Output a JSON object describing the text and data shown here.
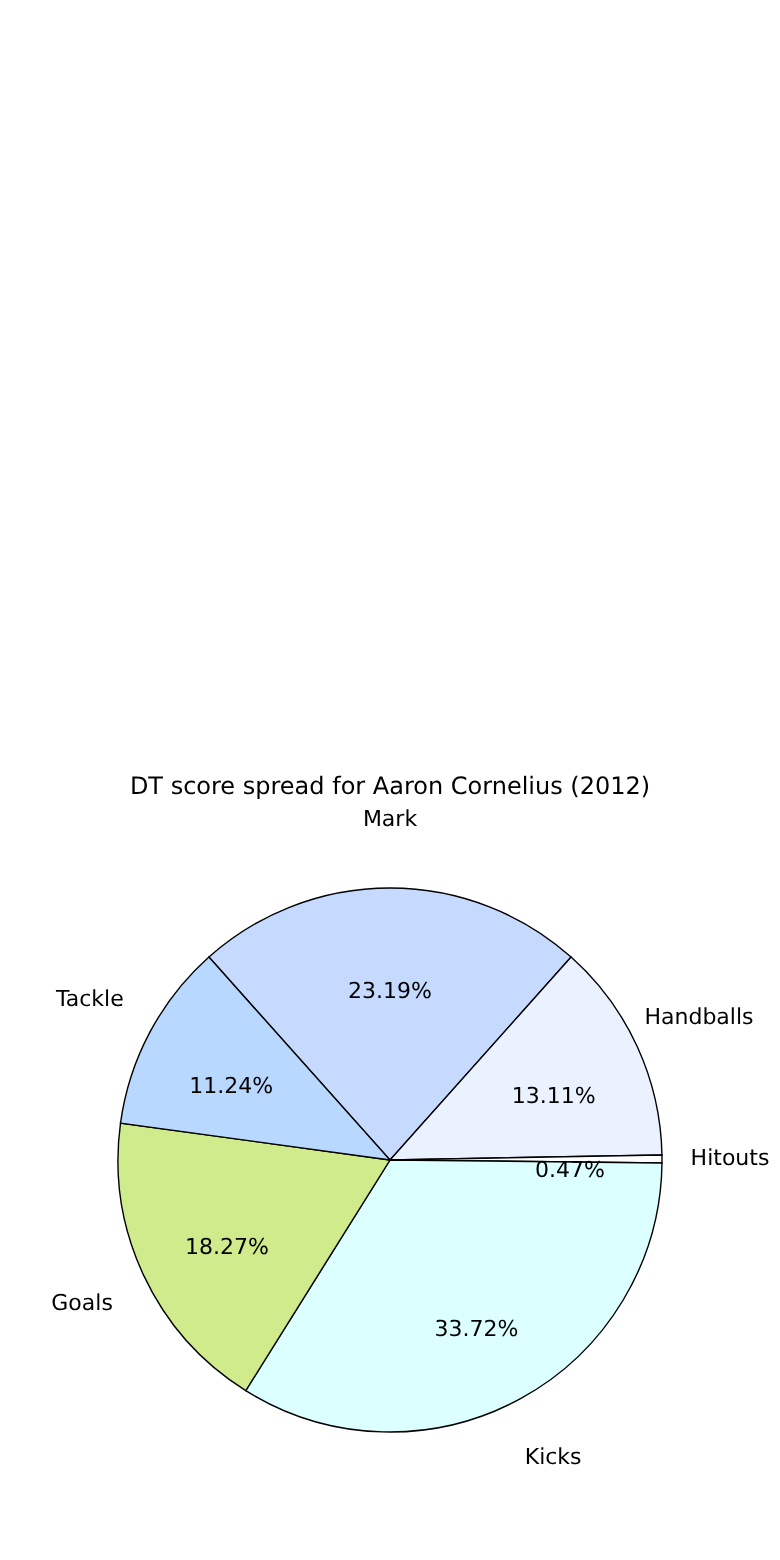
{
  "chart_data": {
    "type": "pie",
    "title": "DT score spread for Aaron Cornelius (2012)",
    "categories": [
      "Mark",
      "Handballs",
      "Hitouts",
      "Kicks",
      "Goals",
      "Tackle"
    ],
    "values": [
      23.19,
      13.11,
      0.47,
      33.72,
      18.27,
      11.24
    ],
    "value_labels": [
      "23.19%",
      "13.11%",
      "0.47%",
      "33.72%",
      "18.27%",
      "11.24%"
    ],
    "colors": [
      "#c6d9ff",
      "#ebf2ff",
      "#ffffff",
      "#dcffff",
      "#d0eb8c",
      "#b8d8ff"
    ]
  }
}
